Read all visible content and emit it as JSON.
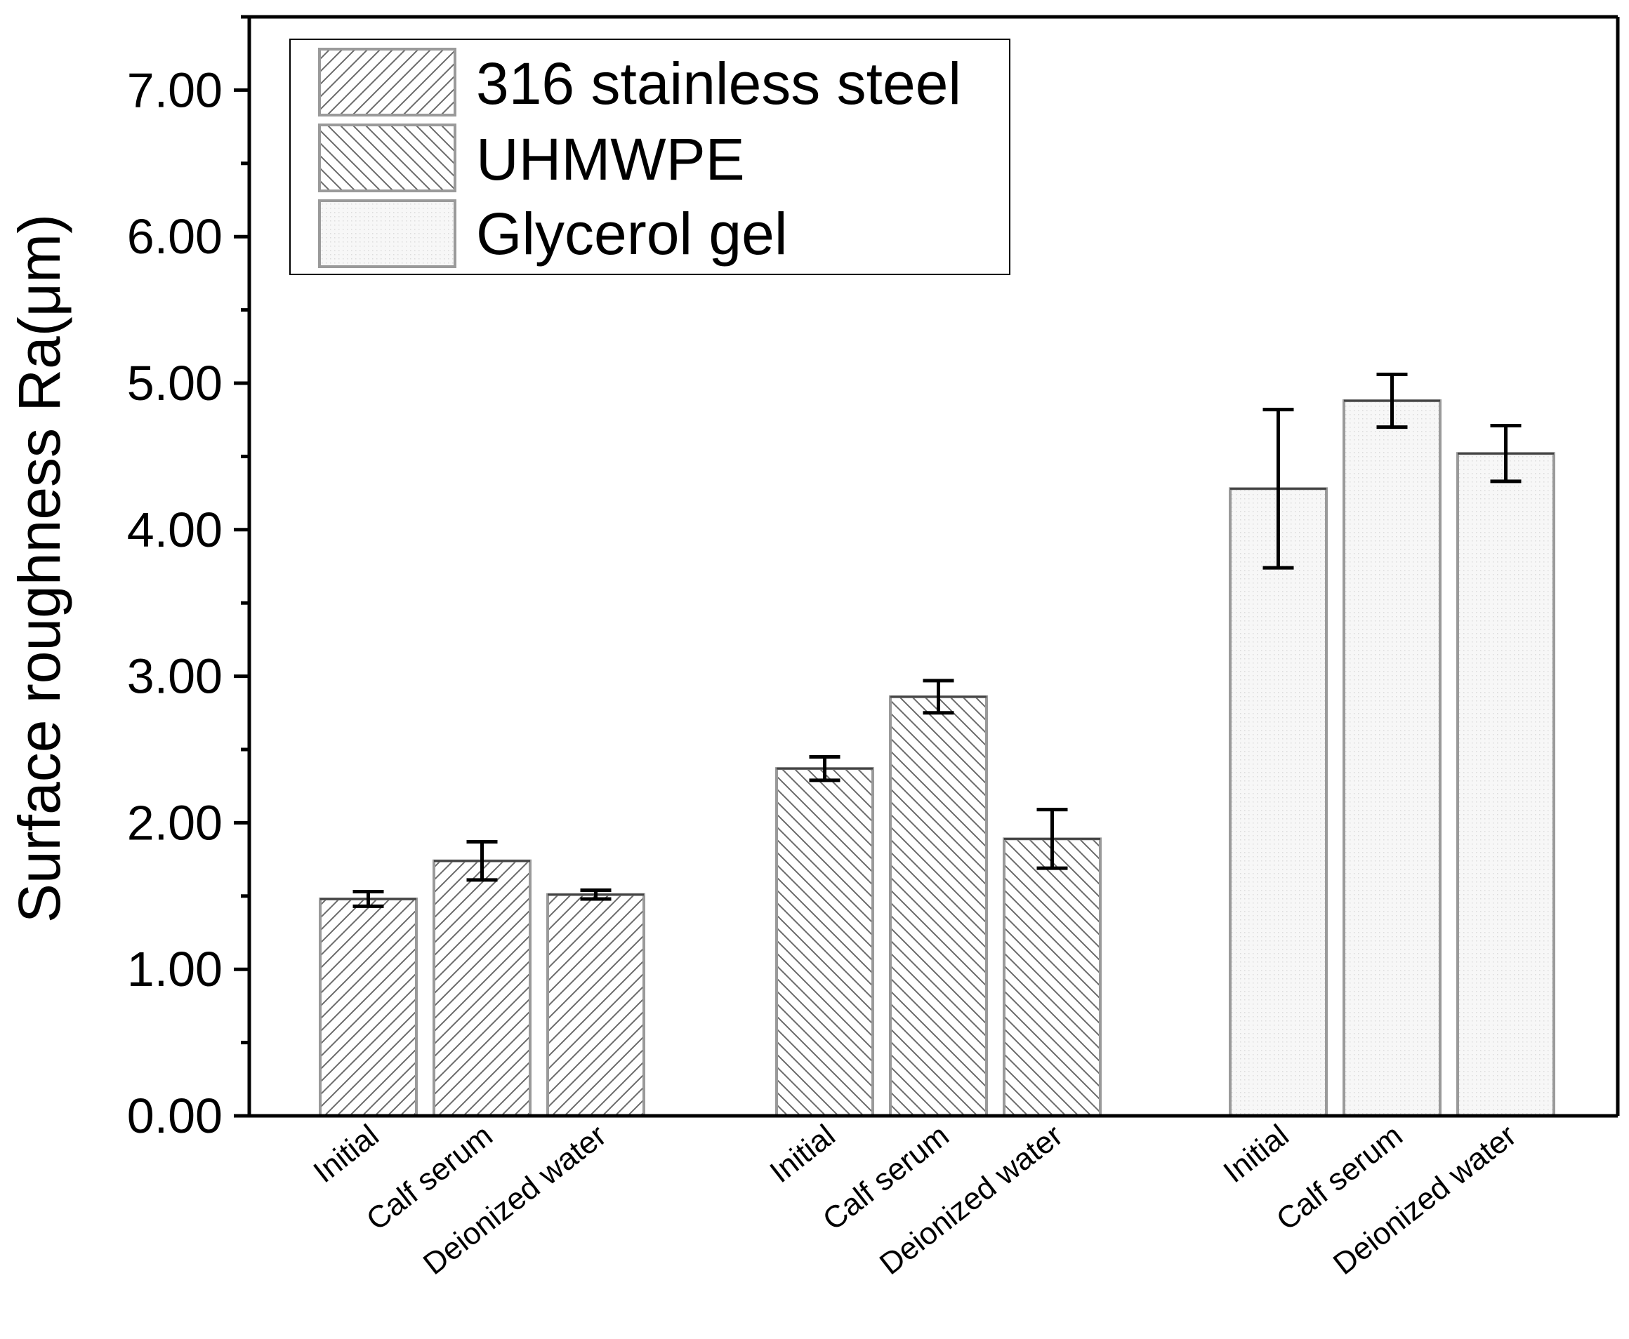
{
  "chart_data": {
    "type": "bar",
    "title": "",
    "xlabel": "",
    "ylabel": "Surface roughness Ra(μm)",
    "ylim": [
      0,
      7.5
    ],
    "yticks": [
      "0.00",
      "1.00",
      "2.00",
      "3.00",
      "4.00",
      "5.00",
      "6.00",
      "7.00"
    ],
    "ytick_values": [
      0,
      1,
      2,
      3,
      4,
      5,
      6,
      7
    ],
    "categories": [
      "Initial",
      "Calf serum",
      "Deionized water"
    ],
    "grid": false,
    "legend_position": "top-left",
    "series": [
      {
        "name": "316 stainless steel",
        "pattern": "hatch-forward",
        "values": [
          1.48,
          1.74,
          1.51
        ],
        "errors": [
          0.05,
          0.13,
          0.03
        ]
      },
      {
        "name": "UHMWPE",
        "pattern": "hatch-back",
        "values": [
          2.37,
          2.86,
          1.89
        ],
        "errors": [
          0.08,
          0.11,
          0.2
        ]
      },
      {
        "name": "Glycerol gel",
        "pattern": "dots",
        "values": [
          4.28,
          4.88,
          4.52
        ],
        "errors": [
          0.54,
          0.18,
          0.19
        ]
      }
    ]
  }
}
